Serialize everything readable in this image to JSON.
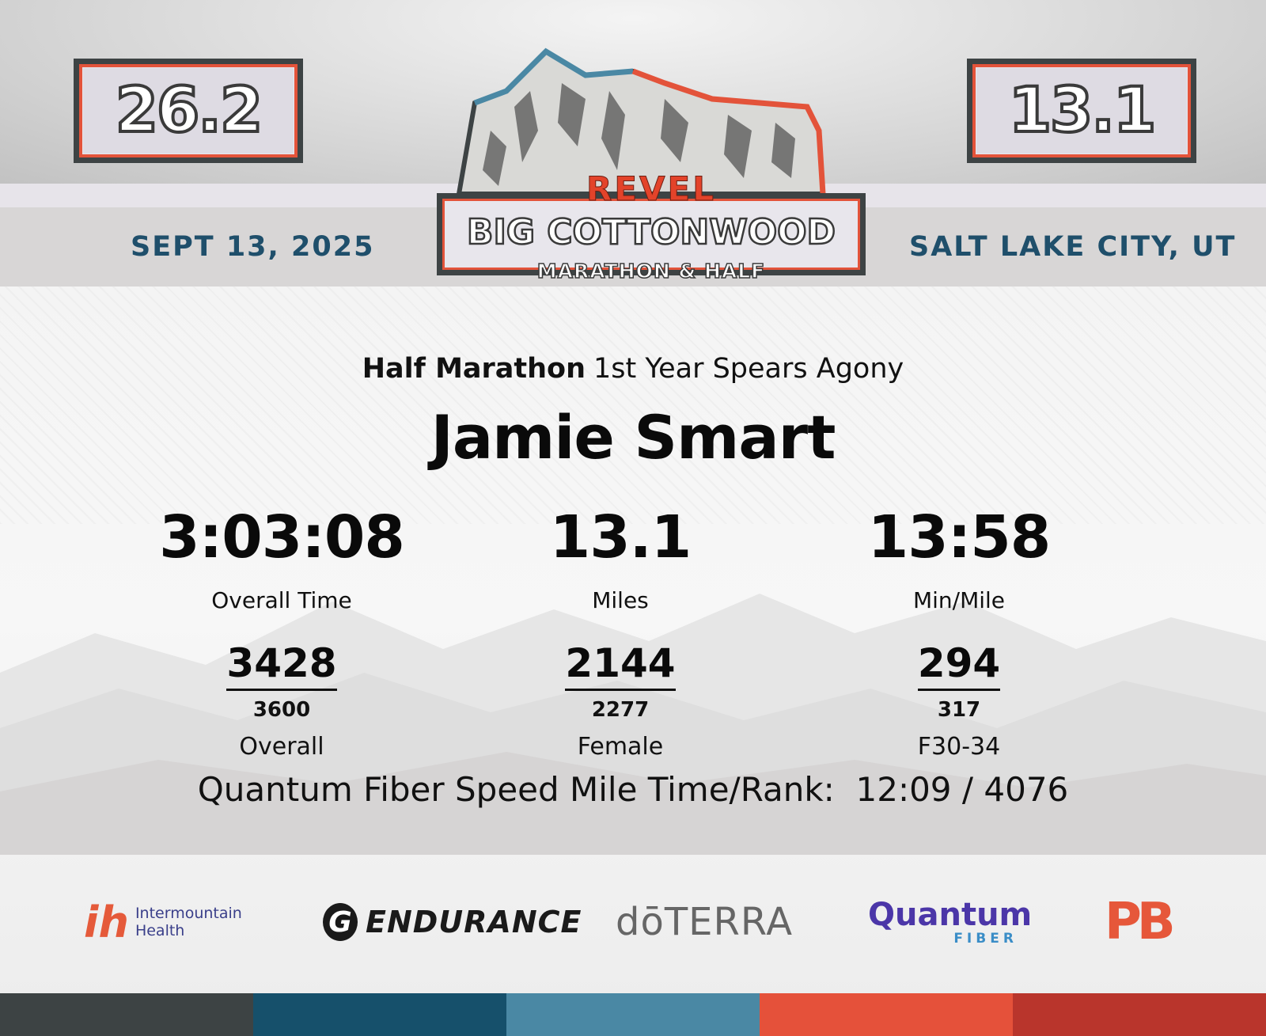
{
  "header": {
    "distance_full": "26.2",
    "distance_half": "13.1",
    "date": "SEPT 13, 2025",
    "location": "SALT LAKE CITY, UT",
    "logo": {
      "brand": "REVEL",
      "title": "BIG COTTONWOOD",
      "subtitle": "MARATHON & HALF"
    }
  },
  "result": {
    "race": "Half Marathon",
    "division": "1st Year Spears Agony",
    "runner_name": "Jamie Smart",
    "stats": [
      {
        "value": "3:03:08",
        "label": "Overall Time"
      },
      {
        "value": "13.1",
        "label": "Miles"
      },
      {
        "value": "13:58",
        "label": "Min/Mile"
      }
    ],
    "ranks": [
      {
        "place": "3428",
        "total": "3600",
        "label": "Overall"
      },
      {
        "place": "2144",
        "total": "2277",
        "label": "Female"
      },
      {
        "place": "294",
        "total": "317",
        "label": "F30-34"
      }
    ],
    "speed_mile": "Quantum Fiber Speed Mile Time/Rank:  12:09 / 4076"
  },
  "sponsors": {
    "intermountain_mark": "ih",
    "intermountain_line1": "Intermountain",
    "intermountain_line2": "Health",
    "gatorade_mark": "G",
    "gatorade_text": "ENDURANCE",
    "doterra": "dōTERRA",
    "quantum": "Quantum",
    "quantum_sub": "FIBER",
    "pbfit": "PB"
  },
  "colors": {
    "accent_blue": "#1f4f6b",
    "accent_red": "#e3533a",
    "bottom_bar": [
      "#3d4344",
      "#16506b",
      "#4a88a4",
      "#e5513a",
      "#b9352c"
    ]
  }
}
